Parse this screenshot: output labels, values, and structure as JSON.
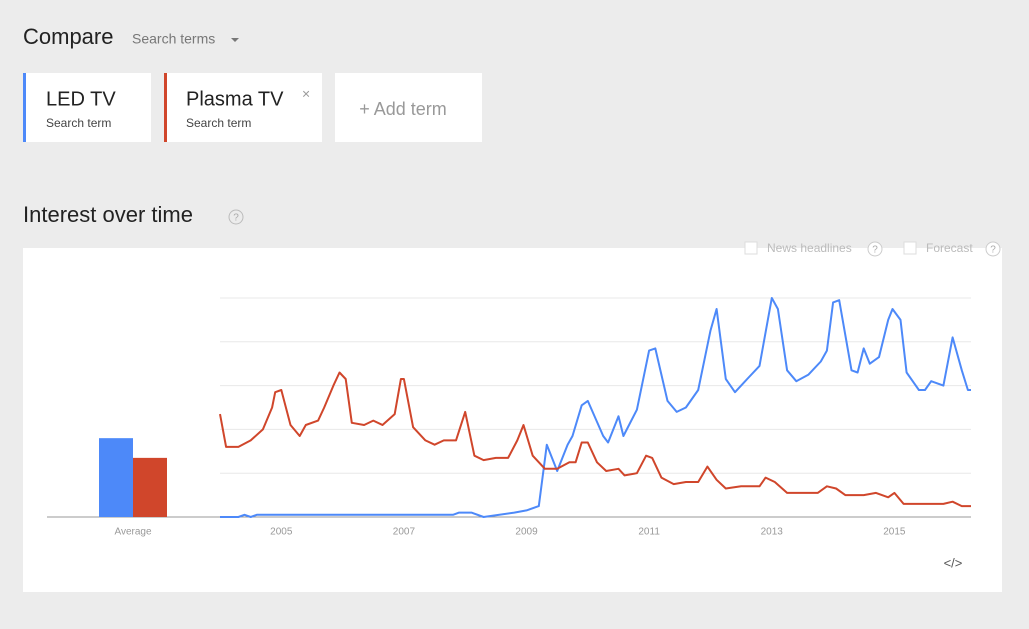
{
  "header": {
    "title": "Compare",
    "menu": "Search terms"
  },
  "terms": [
    {
      "name": "LED TV",
      "kind": "Search term"
    },
    {
      "name": "Plasma TV",
      "kind": "Search term",
      "remove": "×"
    }
  ],
  "add_term": "+ Add term",
  "help_icon": "?",
  "embed_icon": "</>",
  "options": [
    "News headlines",
    "Forecast"
  ],
  "chart_data": {
    "type": "line",
    "title": "Interest over time",
    "average_label": "Average",
    "xlim": [
      2004,
      2016.25
    ],
    "xticks": [
      2005,
      2007,
      2009,
      2011,
      2013,
      2015
    ],
    "ylim": [
      0,
      100
    ],
    "yticks": [
      0,
      20,
      40,
      60,
      80,
      100
    ],
    "grid": true,
    "series": [
      {
        "name": "LED TV",
        "color": "#4d89f9",
        "average": 36,
        "x": [
          2004.0,
          2004.3,
          2004.4,
          2004.5,
          2004.6,
          2007.8,
          2007.9,
          2008.1,
          2008.3,
          2008.8,
          2009.0,
          2009.2,
          2009.33,
          2009.5,
          2009.67,
          2009.75,
          2009.9,
          2010.0,
          2010.25,
          2010.33,
          2010.5,
          2010.58,
          2010.8,
          2011.0,
          2011.1,
          2011.3,
          2011.45,
          2011.6,
          2011.8,
          2012.0,
          2012.1,
          2012.25,
          2012.4,
          2012.6,
          2012.8,
          2013.0,
          2013.1,
          2013.25,
          2013.4,
          2013.6,
          2013.8,
          2013.9,
          2014.0,
          2014.1,
          2014.3,
          2014.4,
          2014.5,
          2014.6,
          2014.75,
          2014.9,
          2014.97,
          2015.1,
          2015.2,
          2015.4,
          2015.5,
          2015.6,
          2015.8,
          2015.95,
          2016.1,
          2016.2,
          2016.25
        ],
        "values": [
          0,
          0,
          1,
          0,
          1,
          1,
          2,
          2,
          0,
          2,
          3,
          5,
          33,
          21,
          33,
          37,
          51,
          53,
          37,
          34,
          46,
          37,
          49,
          76,
          77,
          53,
          48,
          50,
          58,
          85,
          95,
          63,
          57,
          63,
          69,
          100,
          95,
          67,
          62,
          65,
          71,
          76,
          98,
          99,
          67,
          66,
          77,
          70,
          73,
          90,
          95,
          90,
          66,
          58,
          58,
          62,
          60,
          82,
          67,
          58,
          58
        ]
      },
      {
        "name": "Plasma TV",
        "color": "#d0462b",
        "average": 27,
        "x": [
          2004.0,
          2004.1,
          2004.3,
          2004.5,
          2004.7,
          2004.85,
          2004.9,
          2005.0,
          2005.15,
          2005.3,
          2005.4,
          2005.6,
          2005.7,
          2005.85,
          2005.95,
          2006.05,
          2006.15,
          2006.35,
          2006.5,
          2006.65,
          2006.85,
          2006.95,
          2007.0,
          2007.15,
          2007.35,
          2007.5,
          2007.65,
          2007.85,
          2008.0,
          2008.15,
          2008.3,
          2008.5,
          2008.7,
          2008.85,
          2008.95,
          2009.1,
          2009.3,
          2009.5,
          2009.7,
          2009.8,
          2009.9,
          2010.0,
          2010.15,
          2010.3,
          2010.5,
          2010.6,
          2010.8,
          2010.95,
          2011.05,
          2011.2,
          2011.4,
          2011.6,
          2011.8,
          2011.95,
          2012.1,
          2012.25,
          2012.5,
          2012.8,
          2012.9,
          2013.05,
          2013.25,
          2013.5,
          2013.75,
          2013.9,
          2014.05,
          2014.2,
          2014.5,
          2014.7,
          2014.9,
          2015.0,
          2015.15,
          2015.5,
          2015.8,
          2015.95,
          2016.1,
          2016.25
        ],
        "values": [
          47,
          32,
          32,
          35,
          40,
          50,
          57,
          58,
          42,
          37,
          42,
          44,
          50,
          60,
          66,
          63,
          43,
          42,
          44,
          42,
          47,
          63,
          63,
          41,
          35,
          33,
          35,
          35,
          48,
          28,
          26,
          27,
          27,
          35,
          42,
          28,
          22,
          22,
          25,
          25,
          34,
          34,
          25,
          21,
          22,
          19,
          20,
          28,
          27,
          18,
          15,
          16,
          16,
          23,
          17,
          13,
          14,
          14,
          18,
          16,
          11,
          11,
          11,
          14,
          13,
          10,
          10,
          11,
          9,
          11,
          6,
          6,
          6,
          7,
          5,
          5
        ]
      }
    ]
  }
}
